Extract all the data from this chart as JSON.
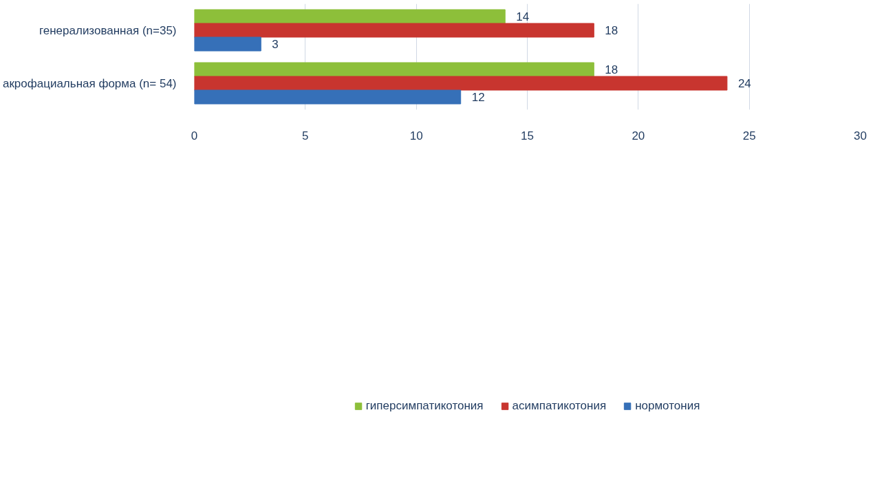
{
  "chart_data": {
    "type": "bar",
    "orientation": "horizontal",
    "categories": [
      "генерализованная (n=35)",
      "акрофациальная форма (n= 54)"
    ],
    "series": [
      {
        "name": "гиперсимпатикотония",
        "color": "#8dbf3a",
        "values": [
          14,
          18
        ]
      },
      {
        "name": "асимпатикотония",
        "color": "#c8352f",
        "values": [
          18,
          24
        ]
      },
      {
        "name": "нормотония",
        "color": "#3670b8",
        "values": [
          3,
          12
        ]
      }
    ],
    "xlim": [
      0,
      30
    ],
    "xticks": [
      0,
      5,
      10,
      15,
      20,
      25,
      30
    ],
    "grid": "x",
    "legend": "bottom",
    "data_labels": true
  }
}
